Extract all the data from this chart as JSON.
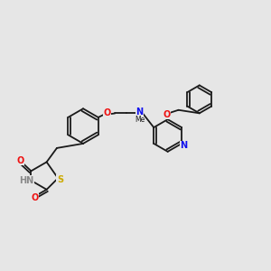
{
  "bg_color": "#e6e6e6",
  "bond_color": "#1a1a1a",
  "atom_colors": {
    "N": "#1010ee",
    "O": "#ee1010",
    "S": "#ccaa00",
    "H": "#888888"
  },
  "font_size": 7.0,
  "bond_width": 1.3,
  "title": ""
}
